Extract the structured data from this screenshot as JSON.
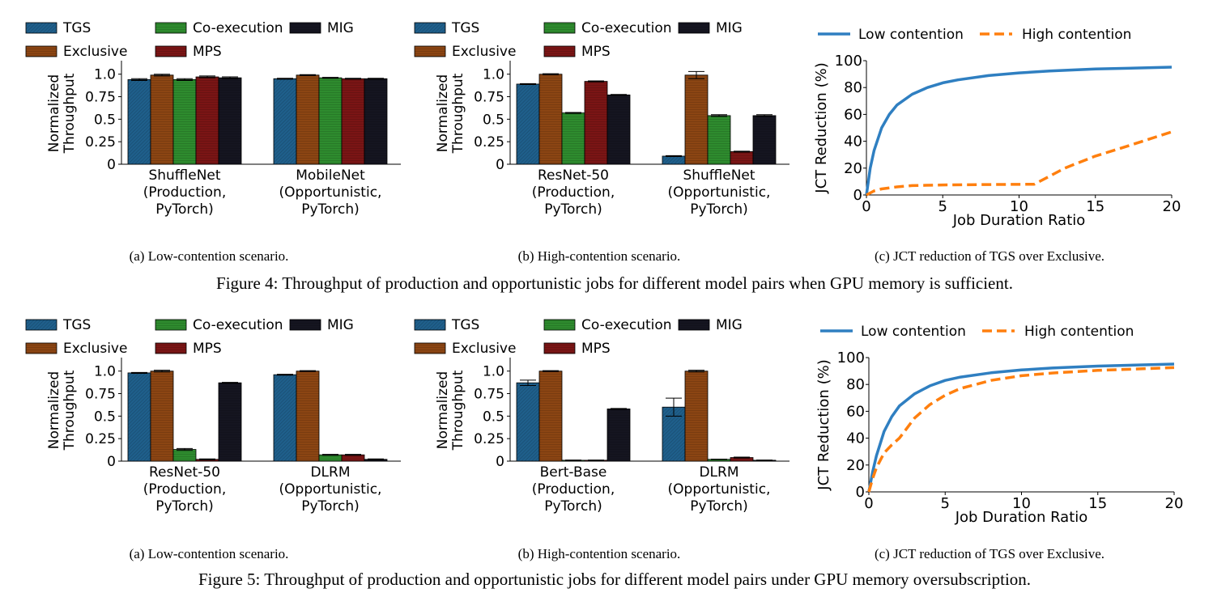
{
  "figures": [
    {
      "caption": "Figure 4: Throughput of production and opportunistic jobs for different model pairs when GPU memory is sufficient.",
      "panels": [
        {
          "subcaption": "(a) Low-contention scenario.",
          "legend": [
            "TGS",
            "Exclusive",
            "Co-execution",
            "MPS",
            "MIG"
          ],
          "ylabel_lines": [
            "Normalized",
            "Throughput"
          ],
          "yticks": [
            "0",
            "0.25",
            "0.5",
            "0.75",
            "1.0"
          ],
          "groups": [
            {
              "label_lines": [
                "ShuffleNet",
                "(Production,",
                "PyTorch)"
              ]
            },
            {
              "label_lines": [
                "MobileNet",
                "(Opportunistic,",
                "PyTorch)"
              ]
            }
          ]
        },
        {
          "subcaption": "(b) High-contention scenario.",
          "legend": [
            "TGS",
            "Exclusive",
            "Co-execution",
            "MPS",
            "MIG"
          ],
          "ylabel_lines": [
            "Normalized",
            "Throughput"
          ],
          "yticks": [
            "0",
            "0.25",
            "0.5",
            "0.75",
            "1.0"
          ],
          "groups": [
            {
              "label_lines": [
                "ResNet-50",
                "(Production,",
                "PyTorch)"
              ]
            },
            {
              "label_lines": [
                "ShuffleNet",
                "(Opportunistic,",
                "PyTorch)"
              ]
            }
          ]
        },
        {
          "subcaption": "(c) JCT reduction of TGS over Exclusive.",
          "legend": [
            "Low contention",
            "High contention"
          ],
          "xlabel": "Job Duration Ratio",
          "ylabel": "JCT Reduction (%)",
          "xticks": [
            "0",
            "5",
            "10",
            "15",
            "20"
          ],
          "yticks": [
            "0",
            "20",
            "40",
            "60",
            "80",
            "100"
          ]
        }
      ]
    },
    {
      "caption": "Figure 5: Throughput of production and opportunistic jobs for different model pairs under GPU memory oversubscription.",
      "panels": [
        {
          "subcaption": "(a) Low-contention scenario.",
          "legend": [
            "TGS",
            "Exclusive",
            "Co-execution",
            "MPS",
            "MIG"
          ],
          "ylabel_lines": [
            "Normalized",
            "Throughput"
          ],
          "yticks": [
            "0",
            "0.25",
            "0.5",
            "0.75",
            "1.0"
          ],
          "groups": [
            {
              "label_lines": [
                "ResNet-50",
                "(Production,",
                "PyTorch)"
              ]
            },
            {
              "label_lines": [
                "DLRM",
                "(Opportunistic,",
                "PyTorch)"
              ]
            }
          ]
        },
        {
          "subcaption": "(b) High-contention scenario.",
          "legend": [
            "TGS",
            "Exclusive",
            "Co-execution",
            "MPS",
            "MIG"
          ],
          "ylabel_lines": [
            "Normalized",
            "Throughput"
          ],
          "yticks": [
            "0",
            "0.25",
            "0.5",
            "0.75",
            "1.0"
          ],
          "groups": [
            {
              "label_lines": [
                "Bert-Base",
                "(Production,",
                "PyTorch)"
              ]
            },
            {
              "label_lines": [
                "DLRM",
                "(Opportunistic,",
                "PyTorch)"
              ]
            }
          ]
        },
        {
          "subcaption": "(c) JCT reduction of TGS over Exclusive.",
          "legend": [
            "Low contention",
            "High contention"
          ],
          "xlabel": "Job Duration Ratio",
          "ylabel": "JCT Reduction (%)",
          "xticks": [
            "0",
            "5",
            "10",
            "15",
            "20"
          ],
          "yticks": [
            "0",
            "20",
            "40",
            "60",
            "80",
            "100"
          ]
        }
      ]
    }
  ],
  "colors": {
    "TGS": "#1f5f8b",
    "Exclusive": "#8b4513",
    "Co-execution": "#2e8b2e",
    "MPS": "#7a1515",
    "MIG": "#151520",
    "Low contention": "#2f7fc1",
    "High contention": "#ff7f0e"
  },
  "chart_data": [
    {
      "type": "bar",
      "categories": [
        "ShuffleNet (Production, PyTorch)",
        "MobileNet (Opportunistic, PyTorch)"
      ],
      "ylim": [
        0,
        1.15
      ],
      "series": [
        {
          "name": "TGS",
          "values": [
            0.94,
            0.95
          ],
          "errors": [
            0.01,
            0.005
          ]
        },
        {
          "name": "Exclusive",
          "values": [
            0.99,
            0.99
          ],
          "errors": [
            0.01,
            0.005
          ]
        },
        {
          "name": "Co-execution",
          "values": [
            0.94,
            0.96
          ],
          "errors": [
            0.01,
            0.005
          ]
        },
        {
          "name": "MPS",
          "values": [
            0.97,
            0.95
          ],
          "errors": [
            0.01,
            0.005
          ]
        },
        {
          "name": "MIG",
          "values": [
            0.96,
            0.95
          ],
          "errors": [
            0.01,
            0.005
          ]
        }
      ]
    },
    {
      "type": "bar",
      "categories": [
        "ResNet-50 (Production, PyTorch)",
        "ShuffleNet (Opportunistic, PyTorch)"
      ],
      "ylim": [
        0,
        1.15
      ],
      "series": [
        {
          "name": "TGS",
          "values": [
            0.89,
            0.09
          ],
          "errors": [
            0.005,
            0.005
          ]
        },
        {
          "name": "Exclusive",
          "values": [
            1.0,
            0.99
          ],
          "errors": [
            0.005,
            0.04
          ]
        },
        {
          "name": "Co-execution",
          "values": [
            0.57,
            0.54
          ],
          "errors": [
            0.005,
            0.01
          ]
        },
        {
          "name": "MPS",
          "values": [
            0.92,
            0.14
          ],
          "errors": [
            0.005,
            0.005
          ]
        },
        {
          "name": "MIG",
          "values": [
            0.77,
            0.54
          ],
          "errors": [
            0.005,
            0.01
          ]
        }
      ]
    },
    {
      "type": "line",
      "xlim": [
        0,
        20
      ],
      "ylim": [
        0,
        100
      ],
      "series": [
        {
          "name": "Low contention",
          "x": [
            0,
            0.25,
            0.5,
            1,
            1.5,
            2,
            3,
            4,
            5,
            6,
            8,
            10,
            12,
            15,
            20
          ],
          "y": [
            0,
            20,
            33,
            50,
            60,
            67,
            75,
            80,
            83.5,
            85.7,
            88.9,
            90.9,
            92.3,
            93.8,
            95.2
          ]
        },
        {
          "name": "High contention",
          "x": [
            0,
            0.5,
            1,
            2,
            3,
            5,
            8,
            11,
            12,
            13,
            15,
            17,
            20
          ],
          "y": [
            0,
            3,
            4.5,
            6,
            7,
            7.5,
            7.8,
            8,
            14,
            20,
            29,
            36,
            47
          ]
        }
      ]
    },
    {
      "type": "bar",
      "categories": [
        "ResNet-50 (Production, PyTorch)",
        "DLRM (Opportunistic, PyTorch)"
      ],
      "ylim": [
        0,
        1.15
      ],
      "series": [
        {
          "name": "TGS",
          "values": [
            0.98,
            0.96
          ],
          "errors": [
            0.005,
            0.005
          ]
        },
        {
          "name": "Exclusive",
          "values": [
            1.0,
            1.0
          ],
          "errors": [
            0.01,
            0.005
          ]
        },
        {
          "name": "Co-execution",
          "values": [
            0.13,
            0.07
          ],
          "errors": [
            0.01,
            0.005
          ]
        },
        {
          "name": "MPS",
          "values": [
            0.02,
            0.07
          ],
          "errors": [
            0.005,
            0.005
          ]
        },
        {
          "name": "MIG",
          "values": [
            0.87,
            0.02
          ],
          "errors": [
            0.005,
            0.005
          ]
        }
      ]
    },
    {
      "type": "bar",
      "categories": [
        "Bert-Base (Production, PyTorch)",
        "DLRM (Opportunistic, PyTorch)"
      ],
      "ylim": [
        0,
        1.15
      ],
      "series": [
        {
          "name": "TGS",
          "values": [
            0.87,
            0.6
          ],
          "errors": [
            0.03,
            0.1
          ]
        },
        {
          "name": "Exclusive",
          "values": [
            1.0,
            1.0
          ],
          "errors": [
            0.005,
            0.01
          ]
        },
        {
          "name": "Co-execution",
          "values": [
            0.01,
            0.02
          ],
          "errors": [
            0.002,
            0.002
          ]
        },
        {
          "name": "MPS",
          "values": [
            0.01,
            0.04
          ],
          "errors": [
            0.002,
            0.005
          ]
        },
        {
          "name": "MIG",
          "values": [
            0.58,
            0.01
          ],
          "errors": [
            0.005,
            0.002
          ]
        }
      ]
    },
    {
      "type": "line",
      "xlim": [
        0,
        20
      ],
      "ylim": [
        0,
        100
      ],
      "series": [
        {
          "name": "Low contention",
          "x": [
            0,
            0.25,
            0.5,
            1,
            1.5,
            2,
            3,
            4,
            5,
            6,
            8,
            10,
            12,
            15,
            20
          ],
          "y": [
            0,
            15,
            27,
            45,
            56,
            64,
            73,
            79,
            83,
            85.5,
            88.7,
            90.8,
            92.2,
            93.7,
            95.2
          ]
        },
        {
          "name": "High contention",
          "x": [
            0,
            0.25,
            0.5,
            1,
            1.5,
            2,
            3,
            4,
            5,
            6,
            8,
            10,
            12,
            15,
            20
          ],
          "y": [
            0,
            10,
            18,
            29,
            35,
            40,
            55,
            65,
            72,
            77,
            83,
            86.5,
            88.5,
            90.5,
            92.5
          ]
        }
      ]
    }
  ]
}
